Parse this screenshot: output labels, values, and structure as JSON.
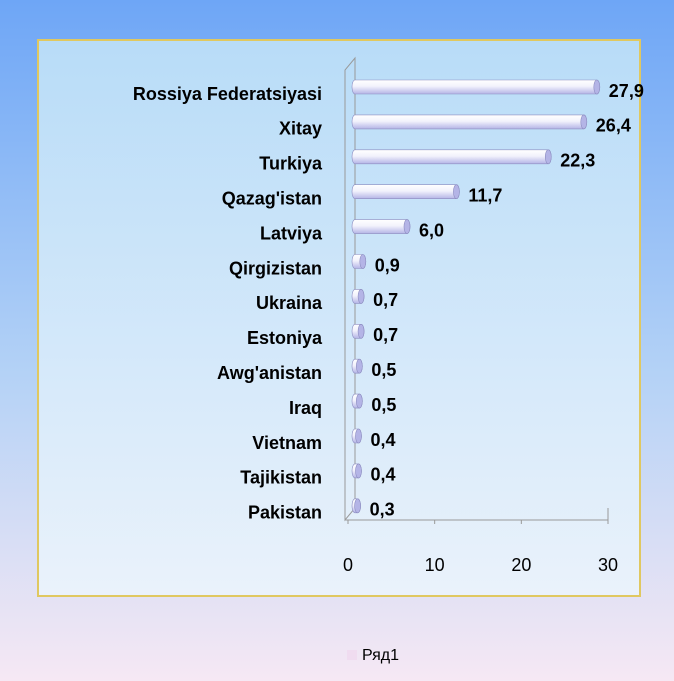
{
  "chart_data": {
    "type": "bar",
    "orientation": "horizontal",
    "categories": [
      "Rossiya Federatsiyasi",
      "Xitay",
      "Turkiya",
      "Qazag'istan",
      "Latviya",
      "Qirgizistan",
      "Ukraina",
      "Estoniya",
      "Awg'anistan",
      "Iraq",
      "Vietnam",
      "Tajikistan",
      "Pakistan"
    ],
    "values": [
      27.9,
      26.4,
      22.3,
      11.7,
      6.0,
      0.9,
      0.7,
      0.7,
      0.5,
      0.5,
      0.4,
      0.4,
      0.3
    ],
    "value_labels": [
      "27,9",
      "26,4",
      "22,3",
      "11,7",
      "6,0",
      "0,9",
      "0,7",
      "0,7",
      "0,5",
      "0,5",
      "0,4",
      "0,4",
      "0,3"
    ],
    "color": "#b4b4e6",
    "xlim": [
      0,
      30
    ],
    "xticks": [
      0,
      10,
      20,
      30
    ],
    "legend": {
      "name": "Ряд1",
      "color": "#f0dcf0",
      "position": "bottom"
    }
  }
}
